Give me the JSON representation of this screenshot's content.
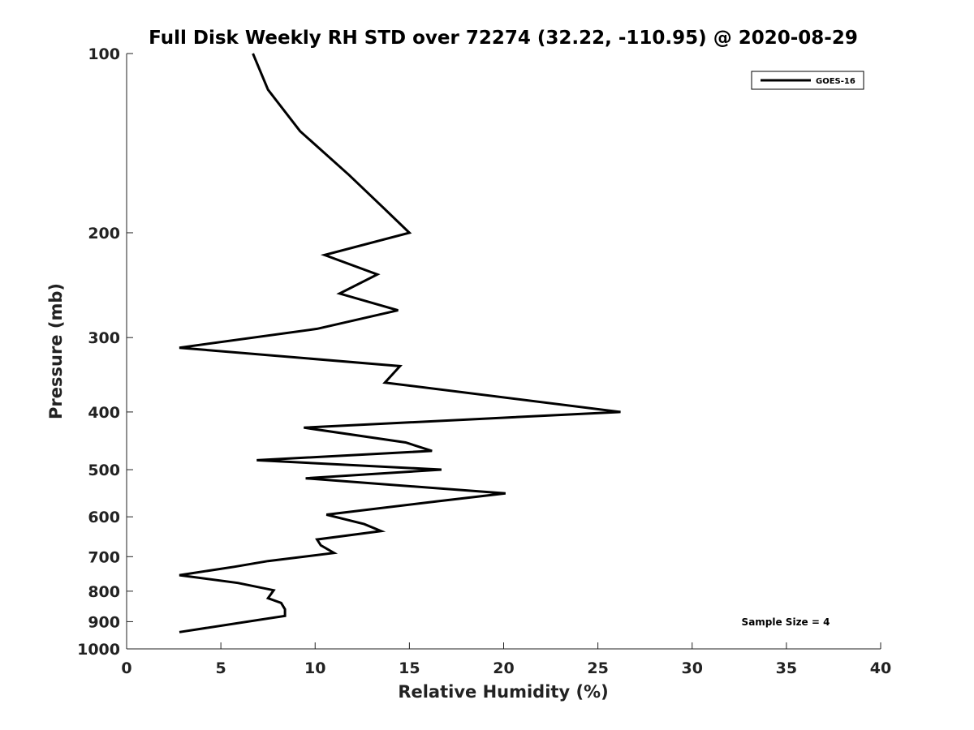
{
  "chart_data": {
    "type": "line",
    "title": "Full Disk Weekly RH STD over 72274 (32.22, -110.95) @ 2020-08-29",
    "xlabel": "Relative Humidity (%)",
    "ylabel": "Pressure (mb)",
    "xlim": [
      0,
      40
    ],
    "ylim": [
      1000,
      100
    ],
    "yscale": "log",
    "xticks": [
      0,
      5,
      10,
      15,
      20,
      25,
      30,
      35,
      40
    ],
    "yticks": [
      100,
      200,
      300,
      400,
      500,
      600,
      700,
      800,
      900,
      1000
    ],
    "grid": false,
    "legend": {
      "placement": "top-right",
      "entries": [
        "GOES-16"
      ]
    },
    "annotation": "Sample Size = 4",
    "series": [
      {
        "name": "GOES-16",
        "color": "#000000",
        "x": [
          6.7,
          7.5,
          9.2,
          11.8,
          13.5,
          15.0,
          10.5,
          13.3,
          11.3,
          14.4,
          10.1,
          2.8,
          14.5,
          13.7,
          26.2,
          9.4,
          14.8,
          16.2,
          6.9,
          16.7,
          9.5,
          20.1,
          16.5,
          10.6,
          12.6,
          13.5,
          10.1,
          10.3,
          11.0,
          7.5,
          5.7,
          2.8,
          5.9,
          7.8,
          7.5,
          8.2,
          8.4,
          8.4,
          2.8
        ],
        "y": [
          100,
          115,
          135,
          160,
          180,
          200,
          218,
          235,
          253,
          270,
          290,
          312,
          335,
          357,
          400,
          425,
          450,
          465,
          482,
          500,
          517,
          548,
          565,
          595,
          617,
          634,
          655,
          670,
          690,
          712,
          728,
          752,
          775,
          797,
          822,
          837,
          858,
          880,
          937
        ]
      }
    ]
  }
}
